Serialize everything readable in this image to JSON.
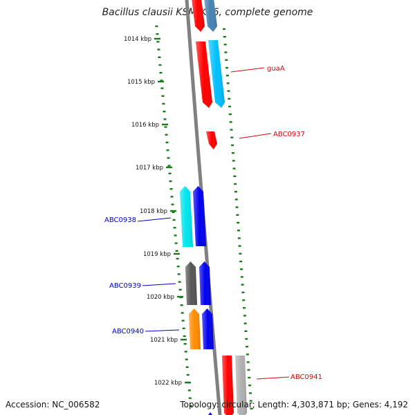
{
  "title": "Bacillus clausii KSM-K16, complete genome",
  "accession": "Accession: NC_006582",
  "topology": "Topology: circular; Length: 4,303,871 bp; Genes: 4,192",
  "colors": {
    "backbone": "#808080",
    "tick": "#1a7a1a",
    "forward_label": "#dd0000",
    "reverse_label": "#0000cc"
  },
  "ticks": [
    {
      "label": "1014 kbp"
    },
    {
      "label": "1015 kbp"
    },
    {
      "label": "1016 kbp"
    },
    {
      "label": "1017 kbp"
    },
    {
      "label": "1018 kbp"
    },
    {
      "label": "1019 kbp"
    },
    {
      "label": "1020 kbp"
    },
    {
      "label": "1021 kbp"
    },
    {
      "label": "1022 kbp"
    }
  ],
  "gene_labels": [
    {
      "text": "guaA",
      "strand": "forward"
    },
    {
      "text": "ABC0937",
      "strand": "forward"
    },
    {
      "text": "ABC0938",
      "strand": "reverse"
    },
    {
      "text": "ABC0939",
      "strand": "reverse"
    },
    {
      "text": "ABC0940",
      "strand": "reverse"
    },
    {
      "text": "ABC0941",
      "strand": "forward"
    }
  ],
  "genes": [
    {
      "strand": "forward",
      "color": "#ff0000"
    },
    {
      "strand": "forward",
      "color": "#4682b4"
    },
    {
      "strand": "forward",
      "color": "#ff0000"
    },
    {
      "strand": "forward",
      "color": "#00bfff"
    },
    {
      "strand": "forward",
      "color": "#ff0000"
    },
    {
      "strand": "reverse",
      "color": "#00e5ee"
    },
    {
      "strand": "reverse",
      "color": "#0000ee"
    },
    {
      "strand": "reverse",
      "color": "#555555"
    },
    {
      "strand": "reverse",
      "color": "#0000ee"
    },
    {
      "strand": "reverse",
      "color": "#ff8c00"
    },
    {
      "strand": "reverse",
      "color": "#0000ee"
    },
    {
      "strand": "forward",
      "color": "#ff0000"
    },
    {
      "strand": "forward",
      "color": "#b0b0b0"
    },
    {
      "strand": "reverse",
      "color": "#0000ee"
    }
  ]
}
